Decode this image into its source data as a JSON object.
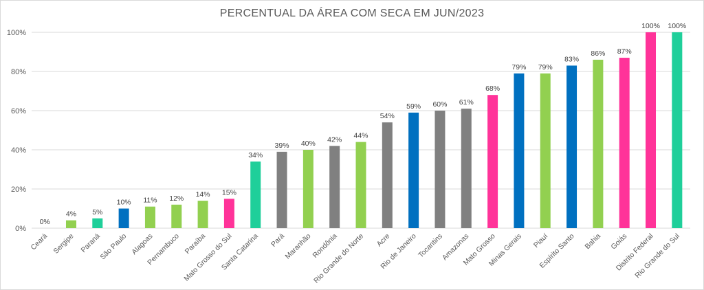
{
  "chart_data": {
    "type": "bar",
    "title": "PERCENTUAL DA ÁREA COM SECA EM JUN/2023",
    "xlabel": "",
    "ylabel": "",
    "ylim": [
      0,
      100
    ],
    "yticks": [
      0,
      20,
      40,
      60,
      80,
      100
    ],
    "ytick_labels": [
      "0%",
      "20%",
      "40%",
      "60%",
      "80%",
      "100%"
    ],
    "grid": "horizontal",
    "legend": "none",
    "categories": [
      "Ceará",
      "Sergipe",
      "Paraná",
      "São Paulo",
      "Alagoas",
      "Pernambuco",
      "Paraíba",
      "Mato Grosso do Sul",
      "Santa Catarina",
      "Pará",
      "Maranhão",
      "Rondônia",
      "Rio Grande do Norte",
      "Acre",
      "Rio de Janeiro",
      "Tocantins",
      "Amazonas",
      "Mato Grosso",
      "Minas Gerais",
      "Piauí",
      "Espírito Santo",
      "Bahia",
      "Goiás",
      "Distrito Federal",
      "Rio Grande do Sul"
    ],
    "values": [
      0,
      4,
      5,
      10,
      11,
      12,
      14,
      15,
      34,
      39,
      40,
      42,
      44,
      54,
      59,
      60,
      61,
      68,
      79,
      79,
      83,
      86,
      87,
      100,
      100
    ],
    "data_labels": [
      "0%",
      "4%",
      "5%",
      "10%",
      "11%",
      "12%",
      "14%",
      "15%",
      "34%",
      "39%",
      "40%",
      "42%",
      "44%",
      "54%",
      "59%",
      "60%",
      "61%",
      "68%",
      "79%",
      "79%",
      "83%",
      "86%",
      "87%",
      "100%",
      "100%"
    ],
    "bar_colors": [
      "#92d050",
      "#92d050",
      "#1fcf9a",
      "#0070c0",
      "#92d050",
      "#92d050",
      "#92d050",
      "#ff3399",
      "#1fcf9a",
      "#808080",
      "#92d050",
      "#808080",
      "#92d050",
      "#808080",
      "#0070c0",
      "#808080",
      "#808080",
      "#ff3399",
      "#0070c0",
      "#92d050",
      "#0070c0",
      "#92d050",
      "#ff3399",
      "#ff3399",
      "#1fcf9a"
    ]
  }
}
